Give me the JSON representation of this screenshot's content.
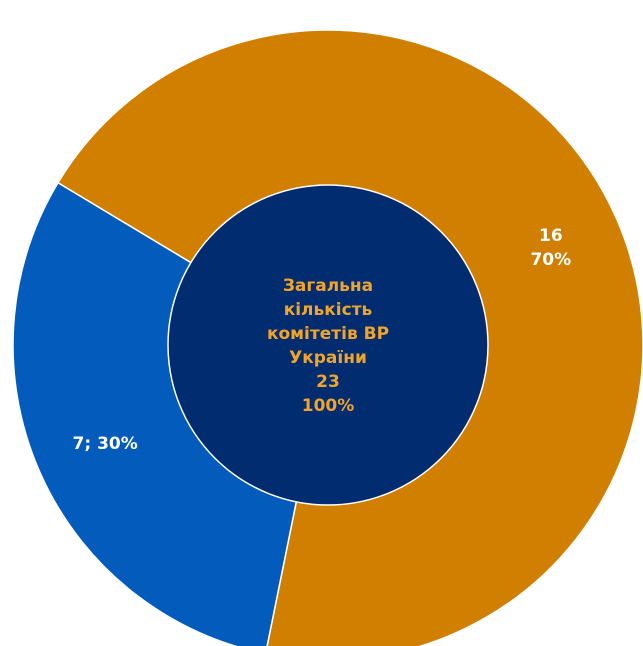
{
  "chart_data": {
    "type": "pie",
    "categories": [
      "",
      ""
    ],
    "values": [
      16,
      7
    ],
    "percents": [
      "70%",
      "30%"
    ],
    "colors": [
      "#d17f00",
      "#035cbc"
    ],
    "slice_labels": [
      "16\n70%",
      "7; 30%"
    ],
    "center": {
      "color": "#022c70",
      "lines": [
        "Загальна",
        "кількість",
        "комітетів ВР",
        "України",
        "23",
        "100%"
      ]
    }
  }
}
